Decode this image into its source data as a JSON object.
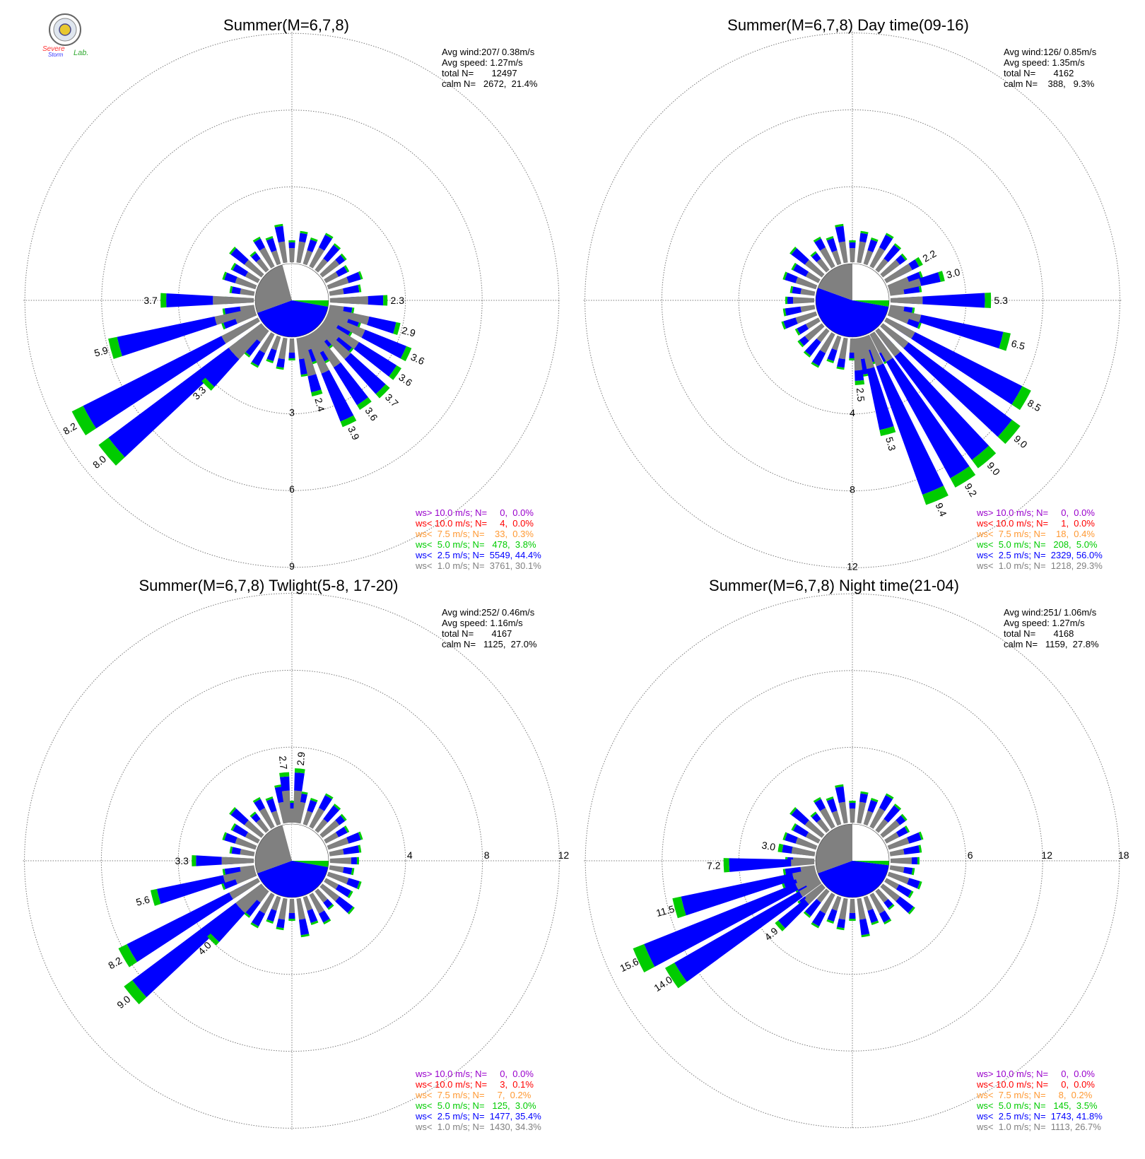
{
  "logo": {
    "line1": "Severe",
    "line2": "Storm",
    "line3": "Lab."
  },
  "colors": {
    "ws_gt10": "#9900cc",
    "ws_lt10": "#ff0000",
    "ws_lt75": "#ff9933",
    "ws_lt50": "#00cc00",
    "ws_lt25": "#0000ff",
    "ws_lt10_calm": "#808080",
    "avg_sector": "#808080",
    "grid": "#7a7a7a"
  },
  "chart_data": [
    {
      "type": "wind-rose",
      "title": "Summer(M=6,7,8)",
      "stats": [
        "Avg wind:207/ 0.38m/s",
        "Avg speed: 1.27m/s",
        "total N=       12497",
        "calm N=   2672,  21.4%"
      ],
      "legend": [
        "ws> 10.0 m/s; N=     0,  0.0%",
        "ws< 10.0 m/s; N=     4,  0.0%",
        "ws<  7.5 m/s; N=    33,  0.3%",
        "ws<  5.0 m/s; N=   478,  3.8%",
        "ws<  2.5 m/s; N=  5549, 44.4%",
        "ws<  1.0 m/s; N=  3761, 30.1%"
      ],
      "ring_ticks": [
        "3",
        "6",
        "9"
      ],
      "ring_values": [
        3,
        6,
        9
      ],
      "ring_label_direction": "south",
      "avg_sectors": [
        {
          "from_deg": 0,
          "to_deg": 90,
          "color": "white"
        },
        {
          "from_deg": 90,
          "to_deg": 100,
          "color": "green"
        },
        {
          "from_deg": 100,
          "to_deg": 250,
          "color": "blue"
        },
        {
          "from_deg": 250,
          "to_deg": 345,
          "color": "gray"
        }
      ],
      "bars": [
        {
          "dir": 270,
          "total": 3.7,
          "label": "3.7"
        },
        {
          "dir": 255,
          "total": 5.9,
          "label": "5.9"
        },
        {
          "dir": 240,
          "total": 8.2,
          "label": "8.2"
        },
        {
          "dir": 230,
          "total": 8.0,
          "label": "8.0"
        },
        {
          "dir": 225,
          "total": 3.3,
          "label": "3.3"
        },
        {
          "dir": 165,
          "total": 2.4,
          "label": "2.4"
        },
        {
          "dir": 155,
          "total": 3.9,
          "label": "3.9"
        },
        {
          "dir": 145,
          "total": 3.6,
          "label": "3.6"
        },
        {
          "dir": 135,
          "total": 3.7,
          "label": "3.7"
        },
        {
          "dir": 125,
          "total": 3.6,
          "label": "3.6"
        },
        {
          "dir": 115,
          "total": 3.6,
          "label": "3.6"
        },
        {
          "dir": 105,
          "total": 2.9,
          "label": "2.9"
        },
        {
          "dir": 90,
          "total": 2.3,
          "label": "2.3"
        }
      ]
    },
    {
      "type": "wind-rose",
      "title": "Summer(M=6,7,8) Day time(09-16)",
      "stats": [
        "Avg wind:126/ 0.85m/s",
        "Avg speed: 1.35m/s",
        "total N=       4162",
        "calm N=    388,   9.3%"
      ],
      "legend": [
        "ws> 10.0 m/s; N=     0,  0.0%",
        "ws< 10.0 m/s; N=     1,  0.0%",
        "ws<  7.5 m/s; N=    18,  0.4%",
        "ws<  5.0 m/s; N=   208,  5.0%",
        "ws<  2.5 m/s; N=  2329, 56.0%",
        "ws<  1.0 m/s; N=  1218, 29.3%"
      ],
      "ring_ticks": [
        "4",
        "8",
        "12"
      ],
      "ring_values": [
        4,
        8,
        12
      ],
      "ring_label_direction": "south",
      "avg_sectors": [
        {
          "from_deg": 0,
          "to_deg": 60,
          "color": "white"
        },
        {
          "from_deg": 60,
          "to_deg": 90,
          "color": "white"
        },
        {
          "from_deg": 90,
          "to_deg": 100,
          "color": "green"
        },
        {
          "from_deg": 100,
          "to_deg": 290,
          "color": "blue"
        },
        {
          "from_deg": 290,
          "to_deg": 360,
          "color": "gray"
        }
      ],
      "bars": [
        {
          "dir": 60,
          "total": 2.2,
          "label": "2.2"
        },
        {
          "dir": 75,
          "total": 3.0,
          "label": "3.0"
        },
        {
          "dir": 90,
          "total": 5.3,
          "label": "5.3"
        },
        {
          "dir": 105,
          "total": 6.5,
          "label": "6.5"
        },
        {
          "dir": 120,
          "total": 8.5,
          "label": "8.5"
        },
        {
          "dir": 130,
          "total": 9.0,
          "label": "9.0"
        },
        {
          "dir": 140,
          "total": 9.0,
          "label": "9.0"
        },
        {
          "dir": 148,
          "total": 9.2,
          "label": "9.2"
        },
        {
          "dir": 157,
          "total": 9.4,
          "label": "9.4"
        },
        {
          "dir": 165,
          "total": 5.3,
          "label": "5.3"
        },
        {
          "dir": 175,
          "total": 2.5,
          "label": "2.5"
        }
      ]
    },
    {
      "type": "wind-rose",
      "title": "Summer(M=6,7,8) Twlight(5-8, 17-20)",
      "stats": [
        "Avg wind:252/ 0.46m/s",
        "Avg speed: 1.16m/s",
        "total N=       4167",
        "calm N=   1125,  27.0%"
      ],
      "legend": [
        "ws> 10.0 m/s; N=     0,  0.0%",
        "ws< 10.0 m/s; N=     3,  0.1%",
        "ws<  7.5 m/s; N=     7,  0.2%",
        "ws<  5.0 m/s; N=   125,  3.0%",
        "ws<  2.5 m/s; N=  1477, 35.4%",
        "ws<  1.0 m/s; N=  1430, 34.3%"
      ],
      "ring_ticks": [
        "4",
        "8",
        "12"
      ],
      "ring_values": [
        4,
        8,
        12
      ],
      "ring_label_direction": "east",
      "avg_sectors": [
        {
          "from_deg": 0,
          "to_deg": 90,
          "color": "white"
        },
        {
          "from_deg": 90,
          "to_deg": 100,
          "color": "green"
        },
        {
          "from_deg": 100,
          "to_deg": 250,
          "color": "blue"
        },
        {
          "from_deg": 250,
          "to_deg": 345,
          "color": "gray"
        }
      ],
      "bars": [
        {
          "dir": 355,
          "total": 2.7,
          "label": "2.7"
        },
        {
          "dir": 5,
          "total": 2.9,
          "label": "2.9"
        },
        {
          "dir": 270,
          "total": 3.3,
          "label": "3.3"
        },
        {
          "dir": 255,
          "total": 5.6,
          "label": "5.6"
        },
        {
          "dir": 240,
          "total": 8.2,
          "label": "8.2"
        },
        {
          "dir": 230,
          "total": 9.0,
          "label": "9.0"
        },
        {
          "dir": 225,
          "total": 4.0,
          "label": "4.0"
        }
      ]
    },
    {
      "type": "wind-rose",
      "title": "Summer(M=6,7,8) Night time(21-04)",
      "stats": [
        "Avg wind:251/ 1.06m/s",
        "Avg speed: 1.27m/s",
        "total N=       4168",
        "calm N=   1159,  27.8%"
      ],
      "legend": [
        "ws> 10.0 m/s; N=     0,  0.0%",
        "ws< 10.0 m/s; N=     0,  0.0%",
        "ws<  7.5 m/s; N=     8,  0.2%",
        "ws<  5.0 m/s; N=   145,  3.5%",
        "ws<  2.5 m/s; N=  1743, 41.8%",
        "ws<  1.0 m/s; N=  1113, 26.7%"
      ],
      "ring_ticks": [
        "6",
        "12",
        "18"
      ],
      "ring_values": [
        6,
        12,
        18
      ],
      "ring_label_direction": "east",
      "avg_sectors": [
        {
          "from_deg": 0,
          "to_deg": 90,
          "color": "white"
        },
        {
          "from_deg": 90,
          "to_deg": 97,
          "color": "green"
        },
        {
          "from_deg": 97,
          "to_deg": 250,
          "color": "blue"
        },
        {
          "from_deg": 250,
          "to_deg": 360,
          "color": "gray"
        }
      ],
      "bars": [
        {
          "dir": 280,
          "total": 3.0,
          "label": "3.0"
        },
        {
          "dir": 268,
          "total": 7.2,
          "label": "7.2"
        },
        {
          "dir": 255,
          "total": 11.5,
          "label": "11.5"
        },
        {
          "dir": 245,
          "total": 15.6,
          "label": "15.6"
        },
        {
          "dir": 237,
          "total": 14.0,
          "label": "14.0"
        },
        {
          "dir": 228,
          "total": 4.9,
          "label": "4.9"
        }
      ]
    }
  ]
}
